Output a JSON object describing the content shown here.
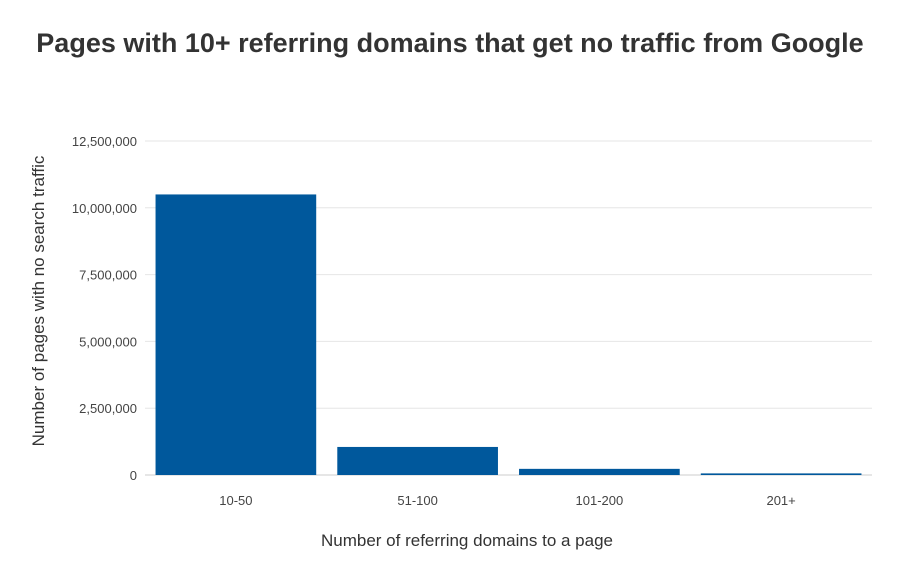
{
  "chart_data": {
    "type": "bar",
    "title": "Pages with 10+ referring domains that get no traffic from Google",
    "xlabel": "Number of referring domains to a page",
    "ylabel": "Number of pages with no search traffic",
    "categories": [
      "10-50",
      "51-100",
      "101-200",
      "201+"
    ],
    "values": [
      10500000,
      1050000,
      230000,
      60000
    ],
    "ylim": [
      0,
      12500000
    ],
    "yticks": [
      0,
      2500000,
      5000000,
      7500000,
      10000000,
      12500000
    ],
    "ytick_labels": [
      "0",
      "2,500,000",
      "5,000,000",
      "7,500,000",
      "10,000,000",
      "12,500,000"
    ],
    "grid": true,
    "legend": "none",
    "colors": {
      "bar": "#00589c",
      "grid": "#e6e6e6"
    }
  }
}
